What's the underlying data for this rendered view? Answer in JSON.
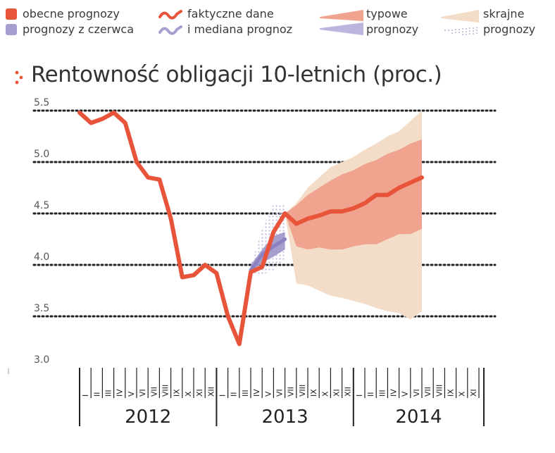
{
  "legend": {
    "obecne_label": "obecne prognozy",
    "czerwca_label": "prognozy z czerwca",
    "faktyczne_label": "faktyczne dane",
    "mediana_label": "i mediana prognoz",
    "typowe_label_1": "typowe",
    "typowe_label_2": "prognozy",
    "skrajne_label_1": "skrajne",
    "skrajne_label_2": "prognozy"
  },
  "colors": {
    "actual": "#e8543a",
    "current_typical": "#f0a38e",
    "current_extreme": "#f3dcc8",
    "june": "#9d95c8",
    "june_extreme": "#c9c3e3",
    "swatch_obecne": "#e8543a",
    "swatch_czerwca": "#a79fd0"
  },
  "chart_data": {
    "type": "line",
    "title": "Rentowność obligacji 10-letnich (proc.)",
    "ylim": [
      3.0,
      5.5
    ],
    "y_ticks": [
      "5.5",
      "5.0",
      "4.5",
      "4.0",
      "3.5",
      "3.0"
    ],
    "grid": true,
    "x_units": "month index (0 = I 2012)",
    "months": [
      "I",
      "II",
      "III",
      "IV",
      "V",
      "VI",
      "VII",
      "VIII",
      "IX",
      "X",
      "XI",
      "XII"
    ],
    "years": [
      "2012",
      "2013",
      "2014"
    ],
    "series": [
      {
        "name": "faktyczne dane",
        "x": [
          0,
          1,
          2,
          3,
          4,
          5,
          6,
          7,
          8,
          9,
          10,
          11,
          12,
          13,
          14,
          15,
          16,
          17,
          18
        ],
        "y": [
          5.48,
          5.38,
          5.42,
          5.48,
          5.38,
          5.0,
          4.85,
          4.83,
          4.45,
          3.88,
          3.9,
          4.0,
          3.92,
          3.5,
          3.23,
          3.93,
          3.98,
          4.32,
          4.5
        ]
      },
      {
        "name": "obecne prognozy (mediana)",
        "x": [
          18,
          19,
          20,
          21,
          22,
          23,
          24,
          25,
          26,
          27,
          28,
          29,
          30
        ],
        "y": [
          4.5,
          4.4,
          4.45,
          4.48,
          4.52,
          4.52,
          4.55,
          4.6,
          4.68,
          4.68,
          4.75,
          4.8,
          4.85
        ]
      }
    ],
    "bands": [
      {
        "name": "skrajne prognozy (obecne)",
        "x": [
          18,
          19,
          20,
          21,
          22,
          23,
          24,
          25,
          26,
          27,
          28,
          29,
          30
        ],
        "upper": [
          4.5,
          4.6,
          4.75,
          4.85,
          4.95,
          5.0,
          5.05,
          5.12,
          5.18,
          5.25,
          5.3,
          5.4,
          5.5
        ],
        "lower": [
          4.5,
          3.82,
          3.8,
          3.75,
          3.7,
          3.68,
          3.65,
          3.62,
          3.58,
          3.55,
          3.53,
          3.47,
          3.55
        ]
      },
      {
        "name": "typowe prognozy (obecne)",
        "x": [
          18,
          19,
          20,
          21,
          22,
          23,
          24,
          25,
          26,
          27,
          28,
          29,
          30
        ],
        "upper": [
          4.5,
          4.58,
          4.68,
          4.75,
          4.82,
          4.88,
          4.92,
          4.98,
          5.02,
          5.08,
          5.12,
          5.18,
          5.22
        ],
        "lower": [
          4.5,
          4.18,
          4.15,
          4.17,
          4.15,
          4.15,
          4.18,
          4.2,
          4.2,
          4.25,
          4.3,
          4.3,
          4.35
        ]
      },
      {
        "name": "skrajne prognozy (z czerwca)",
        "x": [
          15,
          16,
          17,
          18
        ],
        "upper": [
          4.0,
          4.35,
          4.6,
          4.58
        ],
        "lower": [
          3.93,
          3.9,
          3.95,
          4.05
        ]
      },
      {
        "name": "typowe prognozy (z czerwca)",
        "x": [
          15,
          16,
          17,
          18
        ],
        "upper": [
          4.0,
          4.15,
          4.28,
          4.32
        ],
        "lower": [
          3.93,
          4.02,
          4.08,
          4.15
        ]
      }
    ],
    "june_median": {
      "x": [
        15,
        16,
        17,
        18
      ],
      "y": [
        3.95,
        4.1,
        4.18,
        4.25
      ]
    }
  }
}
